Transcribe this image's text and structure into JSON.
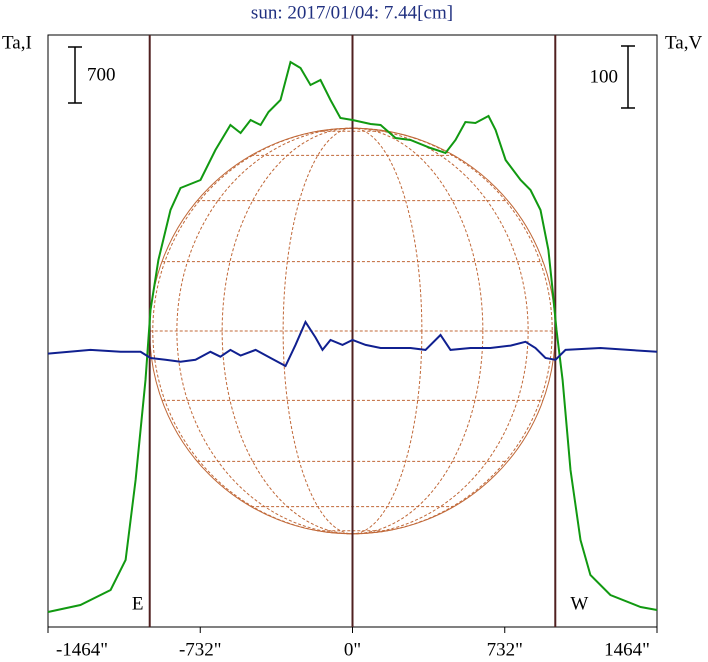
{
  "chart_data": {
    "type": "line",
    "title": "sun: 2017/01/04: 7.44[cm]",
    "y_label": "Ta,I",
    "y2_label": "Ta,V",
    "xlim": [
      -1464,
      1464
    ],
    "xticks": [
      {
        "value": -1464,
        "label": "-1464\""
      },
      {
        "value": -732,
        "label": "-732\""
      },
      {
        "value": 0,
        "label": "0\""
      },
      {
        "value": 732,
        "label": "732\""
      },
      {
        "value": 1464,
        "label": "1464\""
      }
    ],
    "ylim": [
      0,
      7400
    ],
    "y2lim": [
      -444,
      511
    ],
    "solar_radius": 975,
    "limb_labels": [
      "E",
      "W"
    ],
    "scale_bars": [
      {
        "label": "700",
        "value": 700,
        "axis": "y"
      },
      {
        "label": "100",
        "value": 100,
        "axis": "y2"
      }
    ],
    "series": [
      {
        "name": "I",
        "color": "#119911",
        "axis": "y",
        "x": [
          -1464,
          -1308,
          -1163,
          -1091,
          -1043,
          -995,
          -971,
          -933,
          -875,
          -827,
          -731,
          -659,
          -587,
          -538,
          -490,
          -442,
          -404,
          -346,
          -298,
          -250,
          -202,
          -154,
          -106,
          -58,
          0,
          87,
          135,
          207,
          279,
          375,
          447,
          495,
          543,
          591,
          654,
          688,
          736,
          808,
          856,
          904,
          942,
          962,
          981,
          1010,
          1048,
          1096,
          1144,
          1240,
          1385,
          1464
        ],
        "values": [
          188,
          275,
          463,
          838,
          1838,
          3088,
          3963,
          4588,
          5213,
          5488,
          5588,
          5963,
          6275,
          6175,
          6338,
          6275,
          6438,
          6588,
          7063,
          6988,
          6775,
          6838,
          6588,
          6363,
          6338,
          6288,
          6275,
          6113,
          6088,
          5988,
          5925,
          6088,
          6313,
          6300,
          6388,
          6213,
          5838,
          5588,
          5463,
          5213,
          4713,
          4213,
          3713,
          3088,
          1963,
          1088,
          650,
          400,
          250,
          213
        ]
      },
      {
        "name": "V",
        "color": "#102090",
        "axis": "y2",
        "x": [
          -1464,
          -1260,
          -1115,
          -1019,
          -971,
          -899,
          -827,
          -755,
          -683,
          -635,
          -587,
          -538,
          -466,
          -394,
          -322,
          -274,
          -226,
          -178,
          -144,
          -106,
          -48,
          0,
          63,
          135,
          279,
          351,
          423,
          471,
          567,
          663,
          760,
          832,
          880,
          928,
          976,
          1024,
          1192,
          1464
        ],
        "values": [
          -3,
          3,
          0,
          0,
          -10,
          -13,
          -16,
          -13,
          0,
          -8,
          3,
          -6,
          3,
          -10,
          -23,
          11,
          48,
          23,
          3,
          19,
          11,
          19,
          11,
          6,
          6,
          3,
          27,
          3,
          6,
          6,
          10,
          16,
          6,
          -10,
          -13,
          3,
          6,
          0
        ]
      }
    ]
  }
}
